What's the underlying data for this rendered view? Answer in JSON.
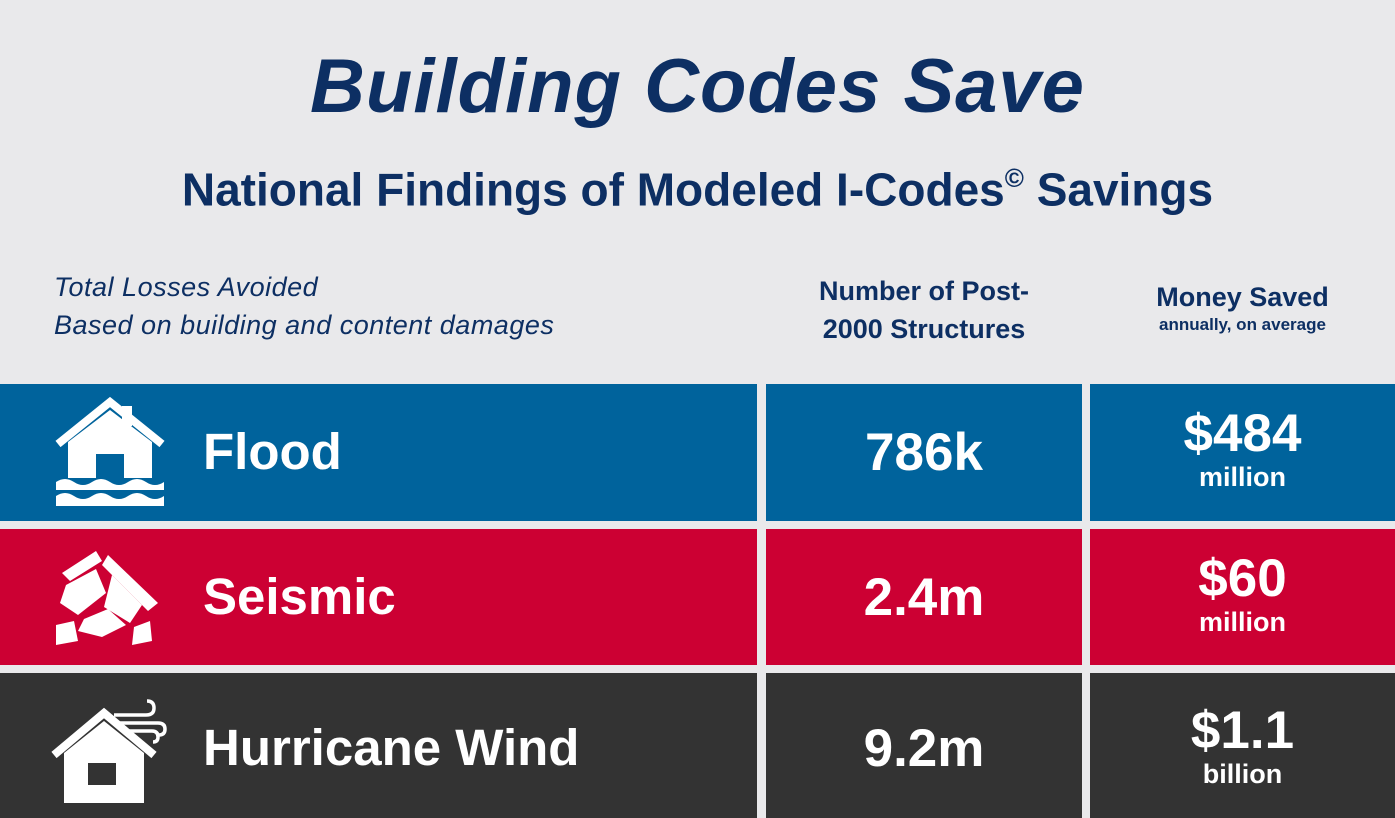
{
  "header": {
    "title": "Building Codes Save",
    "subtitle": "National Findings of Modeled I-Codes",
    "subtitle_mark": "©",
    "subtitle_end": " Savings"
  },
  "columns": {
    "losses_line1": "Total Losses Avoided",
    "losses_line2": "Based on building and content damages",
    "structures_line1": "Number of Post-",
    "structures_line2": "2000 Structures",
    "money_main": "Money Saved",
    "money_sub": "annually, on average"
  },
  "rows": [
    {
      "hazard": "Flood",
      "icon": "flooded-house-icon",
      "structures": "786k",
      "amount": "$484",
      "unit": "million",
      "color": "#00639c"
    },
    {
      "hazard": "Seismic",
      "icon": "collapsed-building-icon",
      "structures": "2.4m",
      "amount": "$60",
      "unit": "million",
      "color": "#cc0033"
    },
    {
      "hazard": "Hurricane Wind",
      "icon": "wind-house-icon",
      "structures": "9.2m",
      "amount": "$1.1",
      "unit": "billion",
      "color": "#333333"
    }
  ]
}
